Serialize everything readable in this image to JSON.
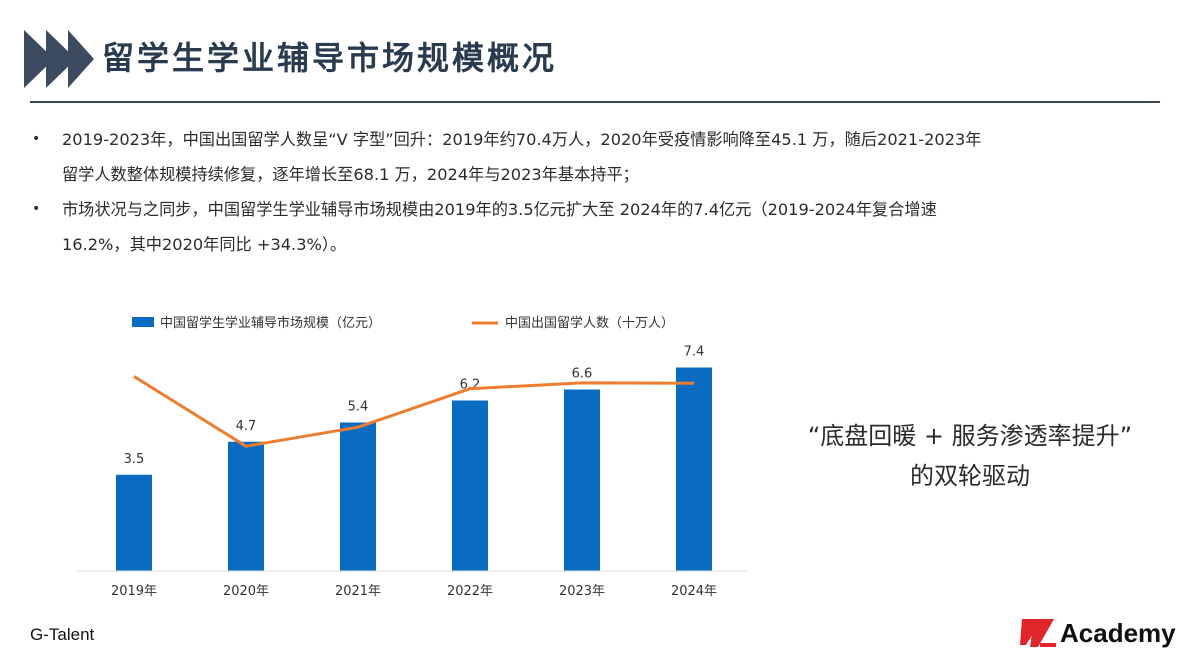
{
  "header": {
    "title": "留学生学业辅导市场规模概况",
    "accent_color": "#3d4b60"
  },
  "bullets": [
    {
      "line1": "2019-2023年，中国出国留学人数呈“V 字型”回升：2019年约70.4万人，2020年受疫情影响降至45.1 万，随后2021-2023年",
      "line2": "留学人数整体规模持续修复，逐年增长至68.1 万，2024年与2023年基本持平；"
    },
    {
      "line1": "市场状况与之同步，中国留学生学业辅导市场规模由2019年的3.5亿元扩大至 2024年的7.4亿元（2019-2024年复合增速",
      "line2": "16.2%，其中2020年同比 +34.3%）。"
    }
  ],
  "chart_data": {
    "type": "bar+line",
    "categories": [
      "2019年",
      "2020年",
      "2021年",
      "2022年",
      "2023年",
      "2024年"
    ],
    "series": [
      {
        "name": "中国留学生学业辅导市场规模（亿元）",
        "type": "bar",
        "color": "#0a6cc0",
        "values": [
          3.5,
          4.7,
          5.4,
          6.2,
          6.6,
          7.4
        ],
        "value_labels": [
          "3.5",
          "4.7",
          "5.4",
          "6.2",
          "6.6",
          "7.4"
        ]
      },
      {
        "name": "中国出国留学人数（十万人）",
        "type": "line",
        "color": "#ed7d31",
        "values": [
          7.04,
          4.51,
          5.2,
          6.6,
          6.81,
          6.8
        ]
      }
    ],
    "ylim": [
      0,
      8
    ],
    "legend_position": "top-left",
    "grid": false
  },
  "callout": {
    "line1": "“底盘回暖 + 服务渗透率提升”",
    "line2": "的双轮驱动"
  },
  "footer": {
    "left": "G-Talent",
    "logo_text": "Academy",
    "logo_color": "#e0262b"
  }
}
